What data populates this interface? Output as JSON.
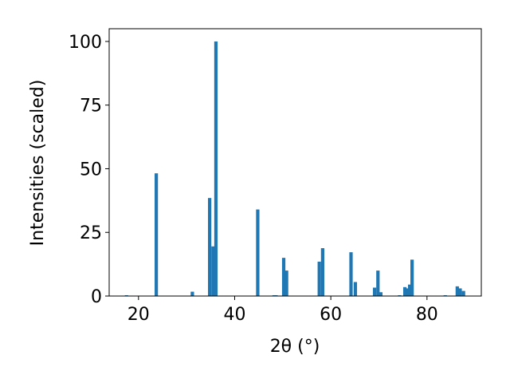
{
  "chart_data": {
    "type": "bar",
    "x_label": "2θ (°)",
    "y_label": "Intensities (scaled)",
    "x": [
      17.5,
      23.7,
      31.2,
      34.8,
      35.5,
      36.1,
      44.8,
      48.2,
      48.6,
      50.2,
      50.8,
      57.6,
      58.3,
      64.2,
      65.1,
      69.1,
      69.8,
      70.4,
      74.3,
      75.4,
      76.0,
      76.4,
      76.9,
      83.8,
      86.3,
      86.9,
      87.6
    ],
    "values": [
      0.3,
      48.2,
      1.7,
      38.5,
      19.5,
      100,
      34,
      0.3,
      0.3,
      15,
      10,
      13.5,
      18.8,
      17.2,
      5.5,
      3.3,
      10,
      1.5,
      0.3,
      3.5,
      3,
      4.5,
      14.3,
      0.3,
      3.8,
      3,
      2
    ],
    "color": "#1f77b4",
    "xlim": [
      13.9,
      91.3
    ],
    "ylim": [
      0,
      105
    ],
    "xticks": [
      20,
      40,
      60,
      80
    ],
    "yticks": [
      0,
      25,
      50,
      75,
      100
    ]
  }
}
